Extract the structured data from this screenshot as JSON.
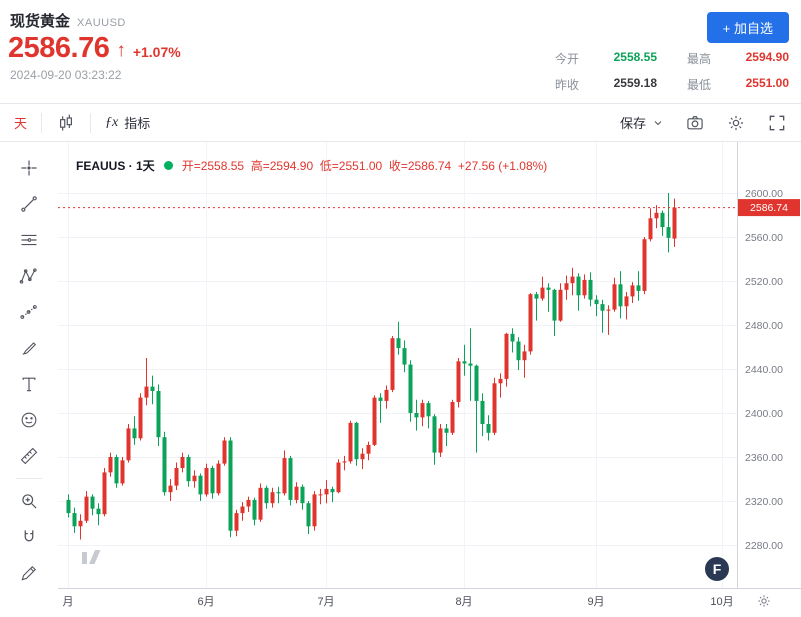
{
  "colors": {
    "red": "#e0352e",
    "green": "#0ba259",
    "blue": "#2470e8",
    "neutral": "#37383d"
  },
  "header": {
    "symbol_name": "现货黄金",
    "symbol_code": "XAUUSD",
    "price": "2586.76",
    "price_color": "red",
    "up_arrow": "↑",
    "change_percent": "+1.07%",
    "timestamp": "2024-09-20 03:23:22",
    "add_watchlist_label": "+ 加自选",
    "add_watchlist_bg": "blue",
    "stats": [
      {
        "label": "今开",
        "value": "2558.55",
        "color": "green"
      },
      {
        "label": "最高",
        "value": "2594.90",
        "color": "red"
      },
      {
        "label": "昨收",
        "value": "2559.18",
        "color": "neutral"
      },
      {
        "label": "最低",
        "value": "2551.00",
        "color": "red"
      }
    ]
  },
  "toolbar": {
    "interval_label": "天",
    "interval_color": "red",
    "fx_icon": "ƒx",
    "indicators_label": "指标",
    "save_label": "保存"
  },
  "branding": {
    "logo_letter": "F"
  },
  "chart_data": {
    "type": "candlestick",
    "symbol_legend": "FEAUUS · 1天",
    "interval": "1天",
    "legend_dot_color": "#00b061",
    "ohlc_text": "开=2558.55  高=2594.90  低=2551.00  收=2586.74  +27.56 (+1.08%)",
    "ohlc_color": "red",
    "open": 2558.55,
    "high": 2594.9,
    "low": 2551.0,
    "close": 2586.74,
    "change": "+27.56",
    "change_percent": "+1.08%",
    "last_price": 2586.74,
    "last_price_label": "2586.74",
    "up_color": "#e0352e",
    "down_color": "#0ba259",
    "grid": true,
    "y_ticks": [
      "2600.00",
      "2560.00",
      "2520.00",
      "2480.00",
      "2440.00",
      "2400.00",
      "2360.00",
      "2320.00",
      "2280.00"
    ],
    "x_labels": [
      {
        "text": "月",
        "i": 0
      },
      {
        "text": "6月",
        "i": 23
      },
      {
        "text": "7月",
        "i": 43
      },
      {
        "text": "8月",
        "i": 66
      },
      {
        "text": "9月",
        "i": 88
      },
      {
        "text": "10月",
        "i": 109
      }
    ],
    "candles": [
      [
        2321,
        2326,
        2305,
        2309
      ],
      [
        2309,
        2314,
        2291,
        2297
      ],
      [
        2297,
        2308,
        2285,
        2302
      ],
      [
        2302,
        2329,
        2300,
        2324
      ],
      [
        2324,
        2326,
        2307,
        2313
      ],
      [
        2313,
        2318,
        2298,
        2308
      ],
      [
        2308,
        2350,
        2306,
        2346
      ],
      [
        2346,
        2364,
        2342,
        2360
      ],
      [
        2360,
        2362,
        2332,
        2336
      ],
      [
        2336,
        2360,
        2334,
        2357
      ],
      [
        2357,
        2390,
        2355,
        2386
      ],
      [
        2386,
        2397,
        2371,
        2377
      ],
      [
        2377,
        2418,
        2375,
        2414
      ],
      [
        2414,
        2450,
        2407,
        2424
      ],
      [
        2424,
        2434,
        2408,
        2420
      ],
      [
        2420,
        2426,
        2370,
        2378
      ],
      [
        2378,
        2383,
        2325,
        2328
      ],
      [
        2328,
        2340,
        2320,
        2334
      ],
      [
        2334,
        2355,
        2330,
        2350
      ],
      [
        2350,
        2364,
        2346,
        2360
      ],
      [
        2360,
        2362,
        2333,
        2338
      ],
      [
        2338,
        2348,
        2332,
        2343
      ],
      [
        2343,
        2345,
        2320,
        2326
      ],
      [
        2326,
        2354,
        2324,
        2350
      ],
      [
        2350,
        2352,
        2322,
        2327
      ],
      [
        2327,
        2357,
        2325,
        2354
      ],
      [
        2354,
        2378,
        2352,
        2375
      ],
      [
        2375,
        2378,
        2287,
        2293
      ],
      [
        2293,
        2312,
        2288,
        2309
      ],
      [
        2309,
        2319,
        2302,
        2315
      ],
      [
        2315,
        2324,
        2310,
        2321
      ],
      [
        2321,
        2323,
        2298,
        2303
      ],
      [
        2303,
        2336,
        2301,
        2332
      ],
      [
        2332,
        2334,
        2313,
        2318
      ],
      [
        2318,
        2332,
        2314,
        2328
      ],
      [
        2328,
        2333,
        2318,
        2327
      ],
      [
        2327,
        2366,
        2325,
        2359
      ],
      [
        2359,
        2361,
        2316,
        2321
      ],
      [
        2321,
        2337,
        2318,
        2333
      ],
      [
        2333,
        2335,
        2312,
        2318
      ],
      [
        2318,
        2320,
        2290,
        2297
      ],
      [
        2297,
        2329,
        2293,
        2326
      ],
      [
        2326,
        2331,
        2317,
        2326
      ],
      [
        2326,
        2339,
        2318,
        2331
      ],
      [
        2331,
        2333,
        2319,
        2328
      ],
      [
        2328,
        2358,
        2327,
        2355
      ],
      [
        2355,
        2361,
        2348,
        2356
      ],
      [
        2356,
        2393,
        2354,
        2391
      ],
      [
        2391,
        2392,
        2352,
        2358
      ],
      [
        2358,
        2368,
        2349,
        2363
      ],
      [
        2363,
        2374,
        2357,
        2371
      ],
      [
        2371,
        2416,
        2370,
        2414
      ],
      [
        2414,
        2418,
        2391,
        2411
      ],
      [
        2411,
        2425,
        2404,
        2421
      ],
      [
        2421,
        2470,
        2419,
        2468
      ],
      [
        2468,
        2483,
        2453,
        2459
      ],
      [
        2459,
        2466,
        2437,
        2444
      ],
      [
        2444,
        2448,
        2392,
        2400
      ],
      [
        2400,
        2412,
        2384,
        2396
      ],
      [
        2396,
        2412,
        2388,
        2409
      ],
      [
        2409,
        2411,
        2386,
        2397
      ],
      [
        2397,
        2399,
        2353,
        2364
      ],
      [
        2364,
        2390,
        2360,
        2386
      ],
      [
        2386,
        2390,
        2370,
        2382
      ],
      [
        2382,
        2412,
        2380,
        2410
      ],
      [
        2410,
        2450,
        2405,
        2447
      ],
      [
        2447,
        2462,
        2434,
        2445
      ],
      [
        2445,
        2477,
        2411,
        2443
      ],
      [
        2443,
        2444,
        2364,
        2411
      ],
      [
        2411,
        2418,
        2379,
        2390
      ],
      [
        2390,
        2398,
        2375,
        2382
      ],
      [
        2382,
        2432,
        2380,
        2427
      ],
      [
        2427,
        2436,
        2414,
        2431
      ],
      [
        2431,
        2473,
        2424,
        2472
      ],
      [
        2472,
        2477,
        2455,
        2465
      ],
      [
        2465,
        2469,
        2439,
        2448
      ],
      [
        2448,
        2462,
        2432,
        2456
      ],
      [
        2456,
        2509,
        2453,
        2508
      ],
      [
        2508,
        2510,
        2484,
        2504
      ],
      [
        2504,
        2524,
        2502,
        2514
      ],
      [
        2514,
        2518,
        2492,
        2512
      ],
      [
        2512,
        2513,
        2470,
        2484
      ],
      [
        2484,
        2518,
        2483,
        2512
      ],
      [
        2512,
        2525,
        2503,
        2518
      ],
      [
        2518,
        2532,
        2507,
        2524
      ],
      [
        2524,
        2527,
        2493,
        2507
      ],
      [
        2507,
        2526,
        2504,
        2521
      ],
      [
        2521,
        2528,
        2497,
        2503
      ],
      [
        2503,
        2507,
        2488,
        2499
      ],
      [
        2499,
        2503,
        2473,
        2493
      ],
      [
        2493,
        2498,
        2471,
        2494
      ],
      [
        2494,
        2523,
        2492,
        2517
      ],
      [
        2517,
        2529,
        2486,
        2497
      ],
      [
        2497,
        2510,
        2485,
        2506
      ],
      [
        2506,
        2519,
        2500,
        2516
      ],
      [
        2516,
        2529,
        2502,
        2511
      ],
      [
        2511,
        2560,
        2508,
        2558
      ],
      [
        2558,
        2586,
        2556,
        2577
      ],
      [
        2577,
        2589,
        2568,
        2582
      ],
      [
        2582,
        2584,
        2561,
        2569
      ],
      [
        2569,
        2600,
        2546,
        2559.18
      ],
      [
        2558.55,
        2594.9,
        2551,
        2586.74
      ]
    ]
  }
}
